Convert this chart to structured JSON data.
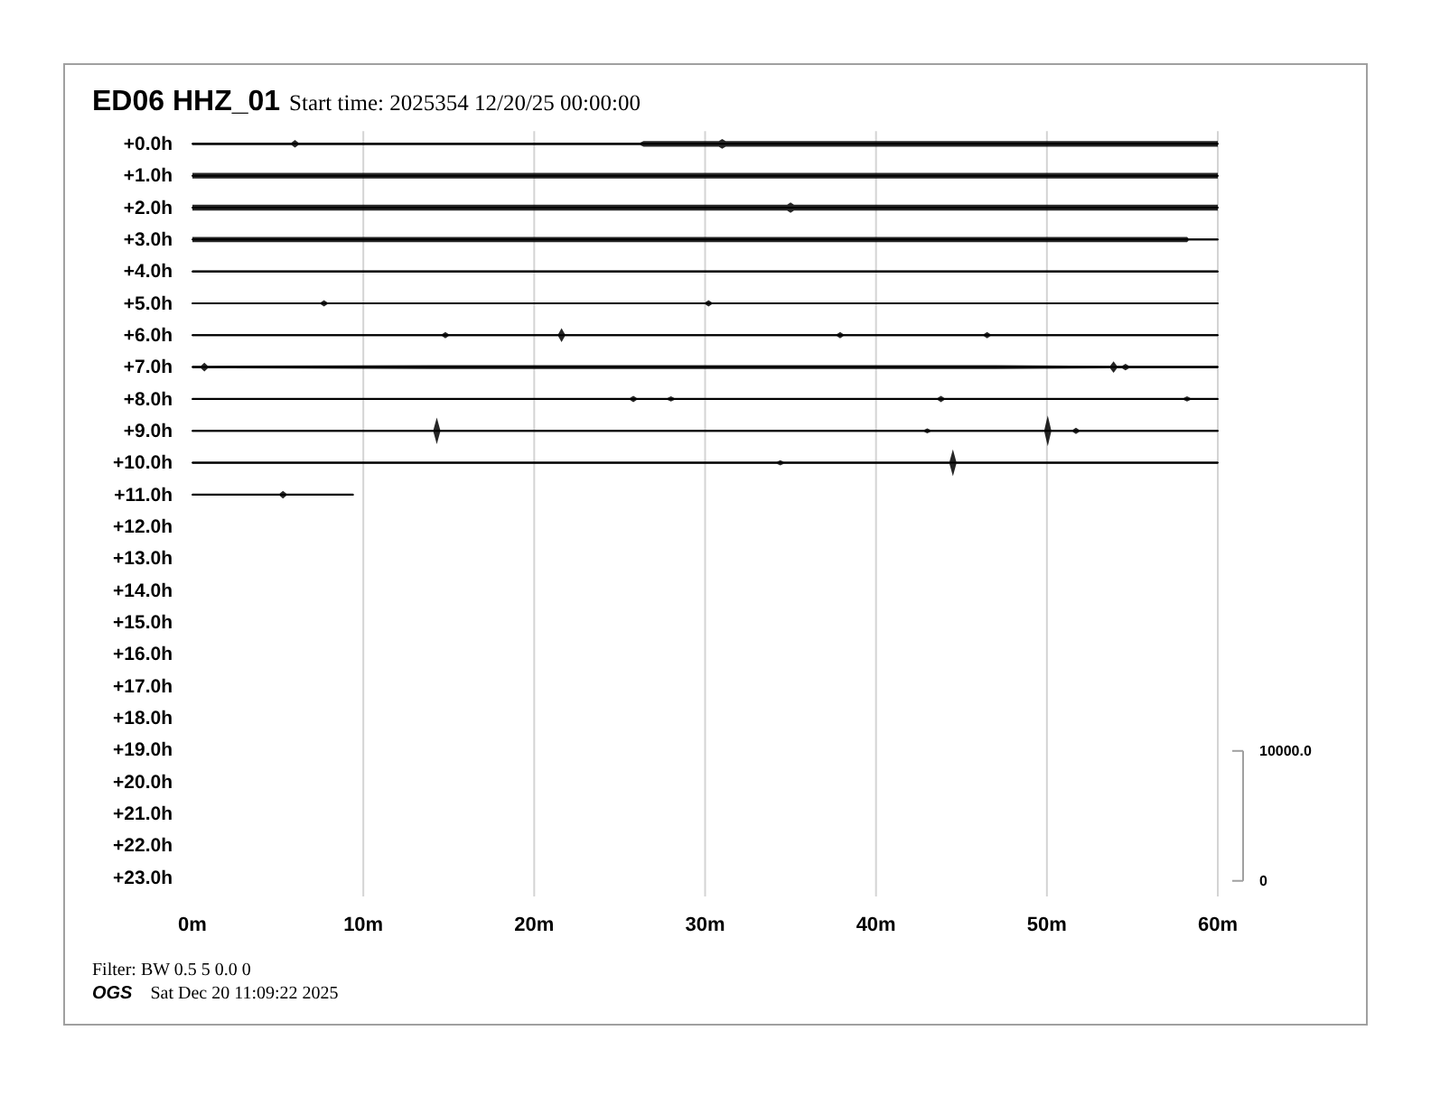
{
  "chart_data": {
    "type": "line",
    "title": "ED06 HHZ_01",
    "subtitle": "Start time: 2025354 12/20/25 00:00:00",
    "annotations": [
      "Filter: BW 0.5 5 0.0 0",
      "OGS",
      "Sat Dec 20 11:09:22 2025"
    ],
    "xlim": [
      0,
      60
    ],
    "xticks": [
      {
        "value": 0,
        "label": "0m"
      },
      {
        "value": 10,
        "label": "10m"
      },
      {
        "value": 20,
        "label": "20m"
      },
      {
        "value": 30,
        "label": "30m"
      },
      {
        "value": 40,
        "label": "40m"
      },
      {
        "value": 50,
        "label": "50m"
      },
      {
        "value": 60,
        "label": "60m"
      }
    ],
    "ylim": [
      23.6,
      -0.4
    ],
    "yticks": [
      {
        "value": 0,
        "label": "+0.0h"
      },
      {
        "value": 1,
        "label": "+1.0h"
      },
      {
        "value": 2,
        "label": "+2.0h"
      },
      {
        "value": 3,
        "label": "+3.0h"
      },
      {
        "value": 4,
        "label": "+4.0h"
      },
      {
        "value": 5,
        "label": "+5.0h"
      },
      {
        "value": 6,
        "label": "+6.0h"
      },
      {
        "value": 7,
        "label": "+7.0h"
      },
      {
        "value": 8,
        "label": "+8.0h"
      },
      {
        "value": 9,
        "label": "+9.0h"
      },
      {
        "value": 10,
        "label": "+10.0h"
      },
      {
        "value": 11,
        "label": "+11.0h"
      },
      {
        "value": 12,
        "label": "+12.0h"
      },
      {
        "value": 13,
        "label": "+13.0h"
      },
      {
        "value": 14,
        "label": "+14.0h"
      },
      {
        "value": 15,
        "label": "+15.0h"
      },
      {
        "value": 16,
        "label": "+16.0h"
      },
      {
        "value": 17,
        "label": "+17.0h"
      },
      {
        "value": 18,
        "label": "+18.0h"
      },
      {
        "value": 19,
        "label": "+19.0h"
      },
      {
        "value": 20,
        "label": "+20.0h"
      },
      {
        "value": 21,
        "label": "+21.0h"
      },
      {
        "value": 22,
        "label": "+22.0h"
      },
      {
        "value": 23,
        "label": "+23.0h"
      }
    ],
    "y2lim": [
      -1200,
      57700
    ],
    "y2ticks": [
      0,
      {
        "value": 10000,
        "label": "10000.0"
      }
    ],
    "grid": "x",
    "series": [
      {
        "color": "#000000",
        "x": [
          0,
          5.8,
          6.0,
          6.2,
          26.2,
          26.4,
          30.8,
          31.0,
          31.2,
          60
        ],
        "values": [
          0,
          0,
          0,
          0,
          0,
          0,
          0,
          0,
          0,
          0
        ],
        "lower": [
          -0.04,
          -0.04,
          -0.12,
          -0.04,
          -0.04,
          -0.09,
          -0.09,
          -0.15,
          -0.09,
          -0.09
        ],
        "upper": [
          0.04,
          0.04,
          0.12,
          0.04,
          0.04,
          0.09,
          0.09,
          0.15,
          0.09,
          0.09
        ]
      },
      {
        "color": "#000000",
        "x": [
          0,
          30,
          60
        ],
        "values": [
          1,
          1,
          1
        ],
        "lower": [
          0.91,
          0.91,
          0.91
        ],
        "upper": [
          1.09,
          1.09,
          1.09
        ]
      },
      {
        "color": "#000000",
        "x": [
          0,
          34.8,
          35.0,
          35.2,
          60
        ],
        "values": [
          2,
          2,
          2,
          2,
          2
        ],
        "lower": [
          1.91,
          1.91,
          1.84,
          1.91,
          1.91
        ],
        "upper": [
          2.09,
          2.09,
          2.16,
          2.09,
          2.09
        ]
      },
      {
        "color": "#000000",
        "x": [
          0,
          58.2,
          58.3,
          60
        ],
        "values": [
          3,
          3,
          3,
          3
        ],
        "lower": [
          2.92,
          2.92,
          2.97,
          2.97
        ],
        "upper": [
          3.08,
          3.08,
          3.03,
          3.03
        ]
      },
      {
        "color": "#000000",
        "x": [
          0,
          60
        ],
        "values": [
          4,
          4
        ],
        "lower": [
          3.97,
          3.97
        ],
        "upper": [
          4.03,
          4.03
        ]
      },
      {
        "color": "#000000",
        "x": [
          0,
          7.5,
          7.7,
          7.9,
          30.0,
          30.2,
          30.4,
          60
        ],
        "values": [
          5,
          5,
          5,
          5,
          5,
          5,
          5,
          5
        ],
        "lower": [
          4.97,
          4.97,
          4.9,
          4.97,
          4.97,
          4.9,
          4.97,
          4.97
        ],
        "upper": [
          5.03,
          5.03,
          5.1,
          5.03,
          5.03,
          5.1,
          5.03,
          5.03
        ]
      },
      {
        "color": "#000000",
        "x": [
          0,
          14.6,
          14.8,
          15.0,
          21.4,
          21.6,
          21.8,
          37.7,
          37.9,
          38.1,
          46.3,
          46.5,
          46.7,
          60
        ],
        "values": [
          6,
          6,
          6,
          6,
          6,
          6,
          6,
          6,
          6,
          6,
          6,
          6,
          6,
          6
        ],
        "lower": [
          5.97,
          5.97,
          5.9,
          5.97,
          5.97,
          5.78,
          5.97,
          5.97,
          5.9,
          5.97,
          5.97,
          5.9,
          5.97,
          5.97
        ],
        "upper": [
          6.03,
          6.03,
          6.1,
          6.03,
          6.03,
          6.22,
          6.03,
          6.03,
          6.1,
          6.03,
          6.03,
          6.1,
          6.03,
          6.03
        ]
      },
      {
        "color": "#000000",
        "x": [
          0,
          0.5,
          0.7,
          0.9,
          14,
          47,
          53.7,
          53.9,
          54.1,
          54.4,
          54.6,
          54.8,
          60
        ],
        "values": [
          7,
          7,
          7,
          7,
          7,
          7,
          7,
          7,
          7,
          7,
          7,
          7,
          7
        ],
        "lower": [
          6.96,
          6.96,
          6.86,
          6.96,
          6.94,
          6.94,
          6.96,
          6.82,
          6.96,
          6.96,
          6.9,
          6.96,
          6.96
        ],
        "upper": [
          7.04,
          7.04,
          7.14,
          7.04,
          7.06,
          7.06,
          7.04,
          7.18,
          7.04,
          7.04,
          7.1,
          7.04,
          7.04
        ]
      },
      {
        "color": "#000000",
        "x": [
          0,
          25.6,
          25.8,
          26.0,
          27.8,
          28.0,
          28.2,
          43.6,
          43.8,
          44.0,
          58.0,
          58.2,
          58.4,
          60
        ],
        "values": [
          8,
          8,
          8,
          8,
          8,
          8,
          8,
          8,
          8,
          8,
          8,
          8,
          8,
          8
        ],
        "lower": [
          7.97,
          7.97,
          7.9,
          7.97,
          7.97,
          7.92,
          7.97,
          7.97,
          7.9,
          7.97,
          7.97,
          7.92,
          7.97,
          7.97
        ],
        "upper": [
          8.03,
          8.03,
          8.1,
          8.03,
          8.03,
          8.08,
          8.03,
          8.03,
          8.1,
          8.03,
          8.03,
          8.08,
          8.03,
          8.03
        ]
      },
      {
        "color": "#000000",
        "x": [
          0,
          14.1,
          14.3,
          14.5,
          42.8,
          43.0,
          43.2,
          49.85,
          50.05,
          50.25,
          51.5,
          51.7,
          51.9,
          60
        ],
        "values": [
          9,
          9,
          9,
          9,
          9,
          9,
          9,
          9,
          9,
          9,
          9,
          9,
          9,
          9
        ],
        "lower": [
          8.97,
          8.97,
          8.58,
          8.97,
          8.97,
          8.92,
          8.97,
          8.97,
          8.52,
          8.97,
          8.97,
          8.9,
          8.97,
          8.97
        ],
        "upper": [
          9.03,
          9.03,
          9.42,
          9.03,
          9.03,
          9.08,
          9.03,
          9.03,
          9.48,
          9.03,
          9.03,
          9.1,
          9.03,
          9.03
        ]
      },
      {
        "color": "#000000",
        "x": [
          0,
          34.2,
          34.4,
          34.6,
          44.3,
          44.5,
          44.7,
          60
        ],
        "values": [
          10,
          10,
          10,
          10,
          10,
          10,
          10,
          10
        ],
        "lower": [
          9.97,
          9.97,
          9.92,
          9.97,
          9.97,
          9.58,
          9.97,
          9.97
        ],
        "upper": [
          10.03,
          10.03,
          10.08,
          10.03,
          10.03,
          10.42,
          10.03,
          10.03
        ]
      },
      {
        "color": "#000000",
        "x": [
          0,
          5.1,
          5.3,
          5.5,
          9.4
        ],
        "values": [
          11,
          11,
          11,
          11,
          11
        ],
        "lower": [
          10.97,
          10.97,
          10.88,
          10.97,
          10.97
        ],
        "upper": [
          11.03,
          11.03,
          11.12,
          11.03,
          11.03
        ]
      }
    ]
  }
}
